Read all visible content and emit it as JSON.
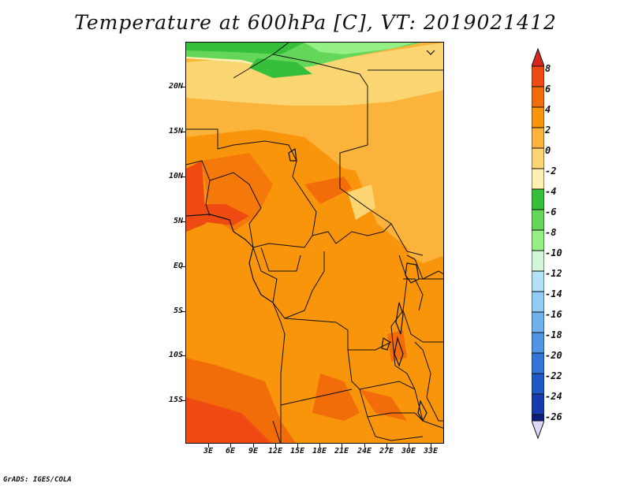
{
  "title": "Temperature at 600hPa [C], VT: 2019021412",
  "credit": "GrADS: IGES/COLA",
  "map": {
    "lat_labels": [
      "20N",
      "15N",
      "10N",
      "5N",
      "EQ",
      "5S",
      "10S",
      "15S"
    ],
    "lon_labels": [
      "3E",
      "6E",
      "9E",
      "12E",
      "15E",
      "18E",
      "21E",
      "24E",
      "27E",
      "30E",
      "33E"
    ]
  },
  "colorbar": {
    "labels": [
      "8",
      "6",
      "4",
      "2",
      "0",
      "-2",
      "-4",
      "-6",
      "-8",
      "-10",
      "-12",
      "-14",
      "-16",
      "-18",
      "-20",
      "-22",
      "-24",
      "-26"
    ],
    "colors": [
      "#d7261d",
      "#ee4a12",
      "#f26d0a",
      "#f8950a",
      "#fbb33c",
      "#fcd673",
      "#fef0b0",
      "#35bf3a",
      "#64d75b",
      "#94ef84",
      "#d2f6d8",
      "#b3e2f7",
      "#92cbf4",
      "#6fb1ef",
      "#4e95e5",
      "#3277d7",
      "#1f59c4",
      "#173bae",
      "#0d1d80"
    ]
  },
  "field_colors": {
    "c_warm": "#f8950a",
    "c_hot": "#f26d0a",
    "c_mild": "#fbb33c",
    "c_cool": "#fcd673",
    "c_cold": "#fef0b0",
    "g_dark": "#35bf3a",
    "g_mid": "#64d75b",
    "g_light": "#94ef84"
  }
}
